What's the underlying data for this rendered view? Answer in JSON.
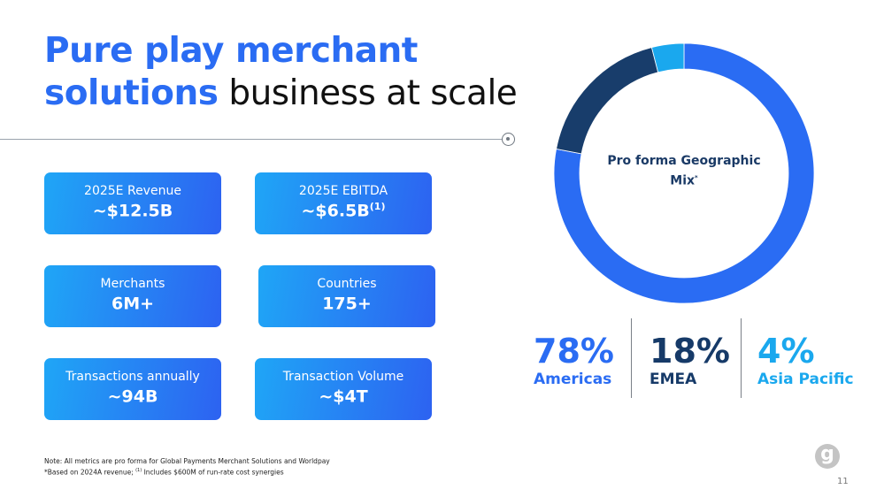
{
  "title": {
    "line1": "Pure play merchant",
    "line2_bold": "solutions",
    "line2_rest": " business at scale"
  },
  "cards": [
    {
      "label": "2025E Revenue",
      "value": "~$12.5B",
      "sup": ""
    },
    {
      "label": "2025E EBITDA",
      "value": "~$6.5B",
      "sup": "(1)"
    },
    {
      "label": "Merchants",
      "value": "6M+",
      "sup": ""
    },
    {
      "label": "Countries",
      "value": "175+",
      "sup": ""
    },
    {
      "label": "Transactions annually",
      "value": "~94B",
      "sup": ""
    },
    {
      "label": "Transaction Volume",
      "value": "~$4T",
      "sup": ""
    }
  ],
  "chart_data": {
    "type": "pie",
    "donut": true,
    "title": "Pro forma Geographic Mix",
    "title_sup": "*",
    "categories": [
      "Americas",
      "EMEA",
      "Asia Pacific"
    ],
    "values": [
      78,
      18,
      4
    ],
    "labels": [
      "78%",
      "18%",
      "4%"
    ],
    "colors": [
      "#2a6cf3",
      "#183d6b",
      "#1aa8ee"
    ]
  },
  "note": {
    "line1": "Note: All metrics are pro forma for Global Payments Merchant Solutions and Worldpay",
    "line2a": "*Based on 2024A revenue; ",
    "line2sup": "(1)",
    "line2b": " Includes $600M of run-rate cost synergies"
  },
  "logo": {
    "text": "g"
  },
  "page_number": "11"
}
